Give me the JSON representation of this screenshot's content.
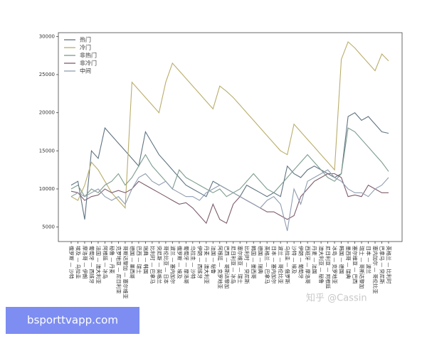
{
  "chart_data": {
    "type": "line",
    "categories": [
      "俄罗斯 — 沙特",
      "埃及 — 乌拉圭",
      "摩洛哥 — 伊朗",
      "葡萄牙 — 西班牙",
      "法国 — 澳大利亚",
      "阿根廷 — 冰岛",
      "秘鲁 — 丹麦",
      "克罗地亚 — 尼日利亚",
      "哥斯达黎加 — 塞尔维亚",
      "德国 — 墨西哥",
      "巴西 — 瑞士",
      "瑞典 — 韩国",
      "比利时 — 巴拿马",
      "突尼斯 — 英格兰",
      "哥伦比亚 — 日本",
      "波兰 — 塞内加尔",
      "俄罗斯 — 埃及",
      "葡萄牙 — 摩洛哥",
      "乌拉圭 — 沙特",
      "伊朗 — 西班牙",
      "丹麦 — 澳大利亚",
      "法国 — 秘鲁",
      "阿根廷 — 克罗地亚",
      "巴西 — 哥斯达黎加",
      "尼日利亚 — 冰岛",
      "塞尔维亚 — 瑞士",
      "比利时 — 突尼斯",
      "韩国 — 墨西哥",
      "德国 — 瑞典",
      "英格兰 — 巴拿马",
      "日本 — 塞内加尔",
      "波兰 — 哥伦比亚",
      "乌拉圭 — 俄罗斯",
      "沙特 — 埃及",
      "伊朗 — 葡萄牙",
      "西班牙 — 摩洛哥",
      "丹麦 — 法国",
      "澳大利亚 — 秘鲁",
      "尼日利亚 — 阿根廷",
      "冰岛 — 克罗地亚",
      "韩国 — 德国",
      "墨西哥 — 瑞典",
      "塞尔维亚 — 巴西",
      "瑞士 — 哥斯达黎加",
      "日本 — 波兰",
      "塞内加尔 — 哥伦比亚",
      "巴拿马 — 突尼斯",
      "英格兰 — 比利时"
    ],
    "series": [
      {
        "name": "热门",
        "color": "#5f7382",
        "values": [
          10500,
          11000,
          6000,
          15000,
          14000,
          18000,
          17000,
          16000,
          15000,
          14000,
          13000,
          17500,
          16000,
          14500,
          13500,
          12500,
          11500,
          10500,
          10000,
          9500,
          9000,
          11000,
          10500,
          10000,
          9500,
          9000,
          10500,
          10000,
          9500,
          9000,
          9500,
          9000,
          13000,
          12000,
          11500,
          12500,
          13000,
          12500,
          12000,
          11500,
          12000,
          19500,
          20000,
          19000,
          19500,
          18500,
          17500,
          17300
        ]
      },
      {
        "name": "冷门",
        "color": "#b9ad6a",
        "values": [
          9000,
          8500,
          10500,
          13500,
          12500,
          11000,
          9500,
          8500,
          7500,
          24000,
          23000,
          22000,
          21000,
          20000,
          24000,
          26500,
          25500,
          24500,
          23500,
          22500,
          21500,
          20500,
          23500,
          22800,
          22000,
          21000,
          20000,
          19000,
          18000,
          17000,
          16000,
          15000,
          14500,
          18500,
          17500,
          16500,
          15500,
          14500,
          13500,
          12500,
          27000,
          29300,
          28500,
          27500,
          26500,
          25500,
          27700,
          26800
        ]
      },
      {
        "name": "非热门",
        "color": "#7d9c8c",
        "values": [
          10000,
          10500,
          9000,
          10000,
          9500,
          10500,
          11000,
          12000,
          10500,
          11500,
          13000,
          14500,
          13000,
          12000,
          11000,
          10000,
          12500,
          11500,
          11000,
          10500,
          10000,
          9500,
          10000,
          9000,
          9500,
          10000,
          11000,
          12000,
          11000,
          10000,
          9500,
          10500,
          11500,
          12500,
          13500,
          14500,
          13500,
          12500,
          11500,
          11000,
          12000,
          18000,
          17500,
          16500,
          15500,
          14500,
          13500,
          12300
        ]
      },
      {
        "name": "非冷门",
        "color": "#7e5c6c",
        "values": [
          9700,
          9500,
          8500,
          9000,
          9200,
          10000,
          9500,
          9800,
          9500,
          10000,
          11000,
          10500,
          10000,
          9500,
          9000,
          8500,
          8000,
          8200,
          7500,
          6500,
          5500,
          8000,
          6000,
          5500,
          8000,
          9000,
          8500,
          8000,
          7500,
          7000,
          7000,
          6500,
          6000,
          6500,
          9000,
          10000,
          11000,
          11500,
          12000,
          12000,
          11500,
          9000,
          9200,
          9000,
          10500,
          10000,
          9500,
          9500
        ]
      },
      {
        "name": "中间",
        "color": "#8f9db0",
        "values": [
          9000,
          9500,
          9000,
          9500,
          10000,
          9000,
          8500,
          9000,
          8000,
          10000,
          11500,
          12000,
          11000,
          10500,
          11000,
          10000,
          9500,
          9000,
          9000,
          8500,
          9500,
          10000,
          10500,
          10000,
          9500,
          9000,
          8500,
          8000,
          7500,
          8500,
          9000,
          8000,
          4500,
          10000,
          8000,
          11000,
          11500,
          12000,
          12500,
          11500,
          11000,
          10000,
          9500,
          9500,
          9000,
          10000,
          10500,
          11500
        ]
      }
    ],
    "ylim": [
      3100,
      30500
    ],
    "yticks": [
      5000,
      10000,
      15000,
      20000,
      25000,
      30000
    ],
    "legend": "upper left"
  },
  "watermark": "知乎 @Cassin",
  "banner": "bsporttvapp.com"
}
